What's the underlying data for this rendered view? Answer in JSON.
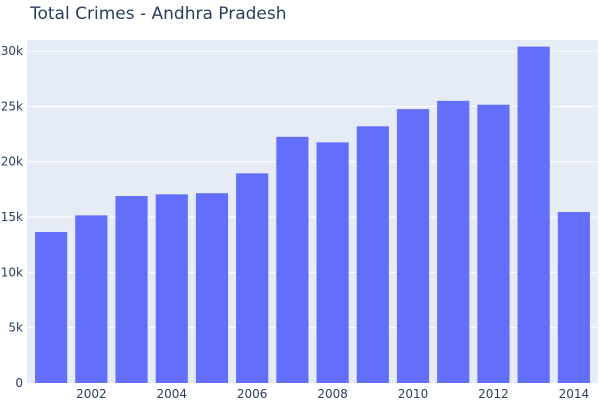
{
  "chart_data": {
    "type": "bar",
    "title": "Total Crimes - Andhra Pradesh",
    "xlabel": "",
    "ylabel": "",
    "x": [
      2001,
      2002,
      2003,
      2004,
      2005,
      2006,
      2007,
      2008,
      2009,
      2010,
      2011,
      2012,
      2013,
      2014
    ],
    "values": [
      13650,
      15150,
      16900,
      17050,
      17150,
      18950,
      22250,
      21750,
      23200,
      24750,
      25500,
      25150,
      30400,
      15450
    ],
    "ylim": [
      0,
      31000
    ],
    "xlim": [
      2000.4,
      2014.6
    ],
    "y_ticks": [
      {
        "value": 0,
        "label": "0"
      },
      {
        "value": 5000,
        "label": "5k"
      },
      {
        "value": 10000,
        "label": "10k"
      },
      {
        "value": 15000,
        "label": "15k"
      },
      {
        "value": 20000,
        "label": "20k"
      },
      {
        "value": 25000,
        "label": "25k"
      },
      {
        "value": 30000,
        "label": "30k"
      }
    ],
    "x_ticks": [
      {
        "value": 2002,
        "label": "2002"
      },
      {
        "value": 2004,
        "label": "2004"
      },
      {
        "value": 2006,
        "label": "2006"
      },
      {
        "value": 2008,
        "label": "2008"
      },
      {
        "value": 2010,
        "label": "2010"
      },
      {
        "value": 2012,
        "label": "2012"
      },
      {
        "value": 2014,
        "label": "2014"
      }
    ],
    "grid": true,
    "legend": "none",
    "colors": {
      "bar": "#636efa",
      "plot_background": "#e5ecf6",
      "gridline": "#ffffff",
      "tick_text": "#2a3f5f",
      "title_text": "#2a3f5f"
    }
  }
}
